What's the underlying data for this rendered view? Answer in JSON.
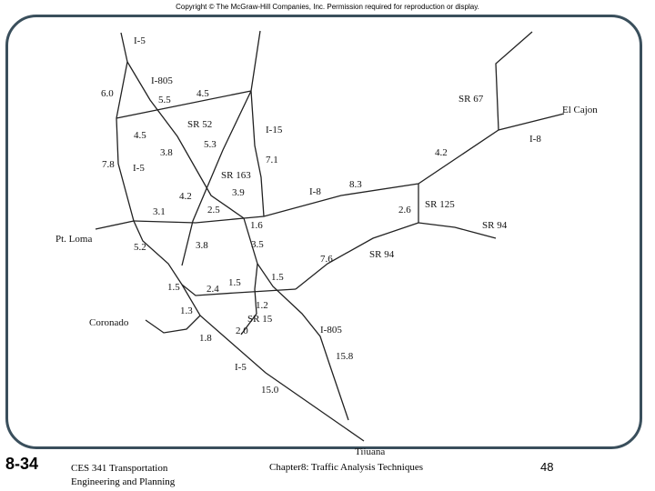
{
  "header": {
    "copyright": "Copyright © The McGraw-Hill Companies, Inc. Permission required for reproduction or display."
  },
  "map": {
    "labels": {
      "i5_top": "I-5",
      "i805_top": "I-805",
      "sr52": "SR 52",
      "i15": "I-15",
      "sr163": "SR 163",
      "i5_left": "I-5",
      "pt_loma": "Pt. Loma",
      "coronado": "Coronado",
      "sr15": "SR 15",
      "i805_bottom": "I-805",
      "i5_bottom": "I-5",
      "tijuana": "Tijuana",
      "i8_mid": "I-8",
      "sr125": "SR 125",
      "sr94_right": "SR 94",
      "sr94_mid": "SR 94",
      "sr67": "SR 67",
      "el_cajon": "El Cajon",
      "i8_right": "I-8"
    },
    "distances": {
      "d6_0": "6.0",
      "d5_5": "5.5",
      "d4_5_top": "4.5",
      "d4_5_left": "4.5",
      "d3_8_mid": "3.8",
      "d5_3": "5.3",
      "d7_1": "7.1",
      "d7_8": "7.8",
      "d4_2_left": "4.2",
      "d3_9": "3.9",
      "d3_1": "3.1",
      "d2_5": "2.5",
      "d1_6": "1.6",
      "d8_3": "8.3",
      "d2_6": "2.6",
      "d4_2_right": "4.2",
      "d5_2": "5.2",
      "d3_8_low": "3.8",
      "d3_5": "3.5",
      "d7_6": "7.6",
      "d1_5_left": "1.5",
      "d2_4": "2.4",
      "d1_5_mid": "1.5",
      "d1_5_right": "1.5",
      "d1_3": "1.3",
      "d1_2": "1.2",
      "d2_0": "2.0",
      "d1_8": "1.8",
      "d15_8": "15.8",
      "d15_0": "15.0"
    }
  },
  "footer": {
    "slide_number": "8-34",
    "course_line1": "CES 341 Transportation",
    "course_line2": "Engineering and Planning",
    "chapter": "Chapter8: Traffic Analysis Techniques",
    "page": "48"
  }
}
